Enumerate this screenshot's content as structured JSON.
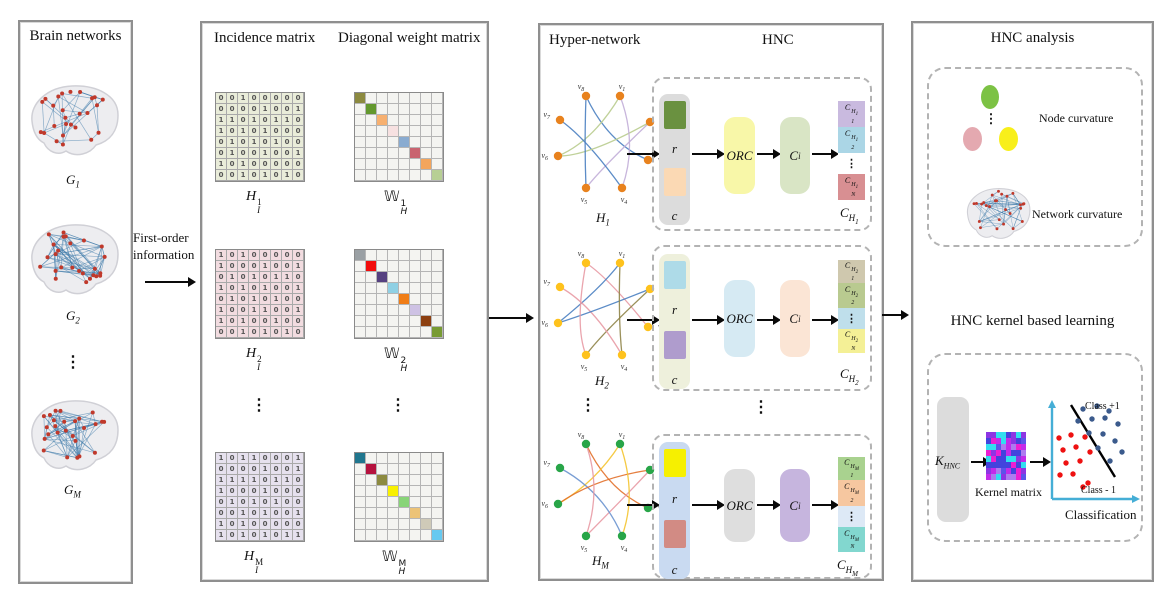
{
  "ellipsis": "⋮",
  "panel1": {
    "title": "Brain networks",
    "g1_base": "G",
    "g1_sub": "1",
    "g2_base": "G",
    "g2_sub": "2",
    "g3_base": "G",
    "g3_sub": "M"
  },
  "first_order": {
    "line1": "First-order",
    "line2": "information"
  },
  "panel2": {
    "title_incidence": "Incidence matrix",
    "title_weight": "Diagonal weight matrix",
    "groups": [
      {
        "h_base": "H",
        "h_sub": "I",
        "h_sup": "1",
        "w_base": "𝕎",
        "w_sub": "H",
        "w_sup": "1",
        "bg": "#e9ecd9",
        "rows": [
          "00100000",
          "00001001",
          "11010110",
          "10101000",
          "01010100",
          "01001001",
          "10100000",
          "00101010"
        ],
        "diag": [
          "#8c8a40",
          "#63982e",
          "#f7b070",
          "#f7e1e1",
          "#89abd0",
          "#c96470",
          "#f3a55c",
          "#b7cf94"
        ]
      },
      {
        "h_base": "H",
        "h_sub": "I",
        "h_sup": "2",
        "w_base": "𝕎",
        "w_sub": "H",
        "w_sup": "2",
        "bg": "#f2dce0",
        "rows": [
          "10100000",
          "10001001",
          "01010110",
          "10101001",
          "01010100",
          "10011001",
          "10100100",
          "00101010"
        ],
        "diag": [
          "#9aa0a4",
          "#f20d0d",
          "#554080",
          "#8fd0e4",
          "#f07d16",
          "#cec2e4",
          "#8c3f10",
          "#789b33"
        ]
      },
      {
        "h_base": "H",
        "h_sub": "I",
        "h_sup": "M",
        "w_base": "𝕎",
        "w_sub": "H",
        "w_sup": "M",
        "bg": "#e6e1ee",
        "rows": [
          "10110001",
          "00001001",
          "11110110",
          "10001000",
          "01010100",
          "00101001",
          "10100000",
          "10101011"
        ],
        "diag": [
          "#20768e",
          "#b5123e",
          "#8c8a40",
          "#f8f000",
          "#88d478",
          "#ecc377",
          "#cfcab8",
          "#66c9f0"
        ]
      }
    ]
  },
  "panel3": {
    "title": "Hyper-network",
    "hnc_title": "HNC",
    "v_base": "v",
    "v_subs": [
      "1",
      "2",
      "3",
      "4",
      "5",
      "6",
      "7",
      "8"
    ],
    "rows": [
      {
        "h_base": "H",
        "h_sub": "1",
        "vertex_color": "#e8821e",
        "edge_colors": [
          "#4a7fc1",
          "#b9cc8e",
          "#c2aed8"
        ],
        "container": "#dcdcdc",
        "r_color": "#6a9140",
        "c_color": "#fbd9b4",
        "r": "r",
        "c": "c",
        "orc": "ORC",
        "orc_color": "#f8f7a8",
        "ci_base": "C",
        "ci_sub": "i",
        "ci_color": "#d9e5c5",
        "cell_base": "C",
        "sup_base": "H",
        "sup_sub": "1",
        "sub1": "1",
        "sub2": "2",
        "subn": "N",
        "c1_color": "#c9badf",
        "c2_color": "#abd6e6",
        "dots_color": "#ffffff",
        "cn_color": "#d88f92",
        "out_base": "C",
        "out_sub": "H",
        "out_subsub": "1"
      },
      {
        "h_base": "H",
        "h_sub": "2",
        "vertex_color": "#fec21d",
        "edge_colors": [
          "#e89aa4",
          "#4a7fc1",
          "#8f8448"
        ],
        "container": "#eef0dc",
        "r_color": "#aedbe8",
        "c_color": "#af9ccd",
        "r": "r",
        "c": "c",
        "orc": "ORC",
        "orc_color": "#d6eaf3",
        "ci_base": "C",
        "ci_sub": "i",
        "ci_color": "#fbe5d5",
        "cell_base": "C",
        "sup_base": "H",
        "sup_sub": "2",
        "sub1": "1",
        "sub2": "2",
        "subn": "N",
        "c1_color": "#cfc8ae",
        "c2_color": "#b9ca90",
        "dots_color": "#bfdfeb",
        "cn_color": "#f4f096",
        "out_base": "C",
        "out_sub": "H",
        "out_subsub": "2"
      },
      {
        "h_base": "H",
        "h_sub": "M",
        "vertex_color": "#28a548",
        "edge_colors": [
          "#e2702a",
          "#f4c430",
          "#e89aa4",
          "#6a93cf"
        ],
        "container": "#c9daf1",
        "r_color": "#f6f000",
        "c_color": "#d28b84",
        "r": "r",
        "c": "c",
        "orc": "ORC",
        "orc_color": "#dedede",
        "ci_base": "C",
        "ci_sub": "i",
        "ci_color": "#c6b5de",
        "cell_base": "C",
        "sup_base": "H",
        "sup_sub": "M",
        "sub1": "1",
        "sub2": "2",
        "subn": "N",
        "c1_color": "#a9d28f",
        "c2_color": "#f6c7a0",
        "dots_color": "#dde9f6",
        "cn_color": "#82d7cf",
        "out_base": "C",
        "out_sub": "H",
        "out_subsub": "M"
      }
    ]
  },
  "panel4": {
    "title": "HNC analysis",
    "node_curvature": "Node curvature",
    "network_curvature": "Network curvature",
    "ellipse_green": "#7cc244",
    "ellipse_pink": "#e4a9b0",
    "ellipse_yellow": "#f8ef1a",
    "kernel_title": "HNC kernel based learning",
    "k_base": "K",
    "k_sub": "HNC",
    "kernel_matrix_label": "Kernel matrix",
    "class_pos": "Class +1",
    "class_neg": "Class - 1",
    "classification": "Classification",
    "axis_color": "#45aed6",
    "pos_color": "#3b5a8c",
    "neg_color": "#ee1111",
    "kernel_palette": [
      "#ec1fd2",
      "#8d35e3",
      "#5b54ea",
      "#32dff0",
      "#4343dd",
      "#c32bea",
      "#ad7bf0"
    ]
  },
  "deco": {
    "brain_node": "#c0392b",
    "brain_edge": "#3a78a8"
  }
}
